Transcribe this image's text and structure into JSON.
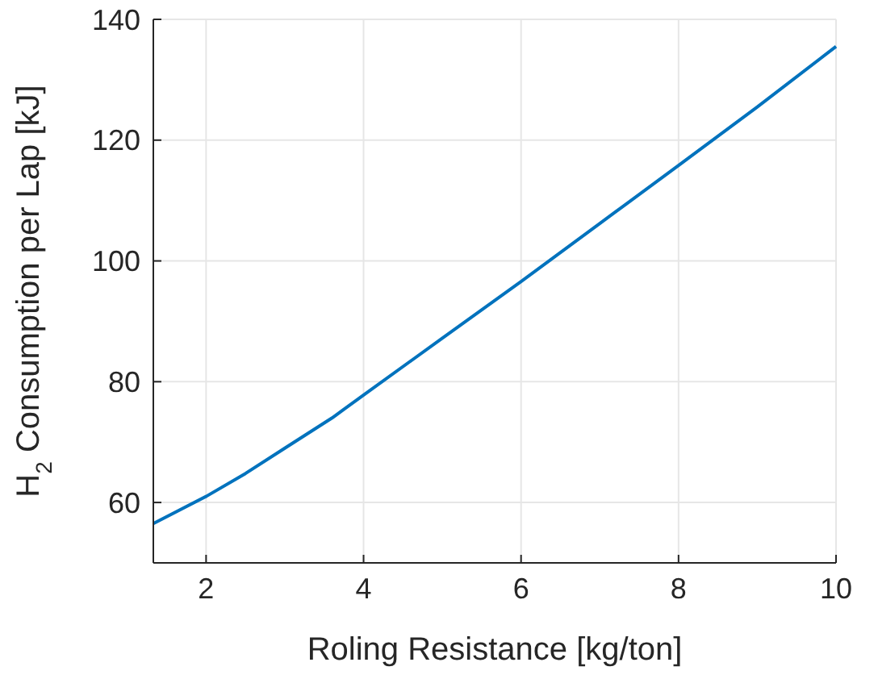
{
  "chart_data": {
    "type": "line",
    "xlabel": "Roling Resistance [kg/ton]",
    "ylabel": "H$_{2}$ Consumption per Lap [kJ]",
    "x": [
      1.33,
      2,
      2.5,
      3,
      3.6,
      4,
      5,
      6,
      7,
      8,
      9,
      10
    ],
    "series": [
      {
        "color": "#0072bd",
        "values": [
          56.5,
          61,
          64.8,
          69,
          74,
          77.8,
          87.2,
          96.6,
          106.2,
          115.8,
          125.5,
          135.5
        ]
      }
    ],
    "xlim": [
      1.33,
      10
    ],
    "ylim": [
      50,
      140
    ],
    "xticks": [
      2,
      4,
      6,
      8,
      10
    ],
    "yticks": [
      60,
      80,
      100,
      120,
      140
    ],
    "grid": true,
    "line_style": "solid",
    "marker": "none"
  }
}
